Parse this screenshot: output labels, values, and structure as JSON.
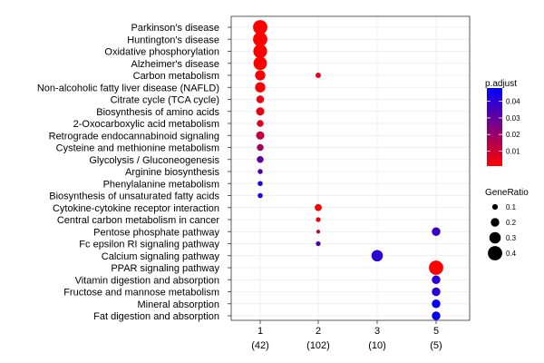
{
  "chart_data": {
    "type": "scatter",
    "title": "",
    "xlabel": "",
    "ylabel": "",
    "x_categories": [
      {
        "name": "1",
        "count": "(42)"
      },
      {
        "name": "2",
        "count": "(102)"
      },
      {
        "name": "3",
        "count": "(10)"
      },
      {
        "name": "5",
        "count": "(5)"
      }
    ],
    "y_categories": [
      "Parkinson's disease",
      "Huntington's disease",
      "Oxidative phosphorylation",
      "Alzheimer's disease",
      "Carbon metabolism",
      "Non-alcoholic fatty liver disease (NAFLD)",
      "Citrate cycle (TCA cycle)",
      "Biosynthesis of amino acids",
      "2-Oxocarboxylic acid metabolism",
      "Retrograde endocannabinoid signaling",
      "Cysteine and methionine metabolism",
      "Glycolysis / Gluconeogenesis",
      "Arginine biosynthesis",
      "Phenylalanine metabolism",
      "Biosynthesis of unsaturated fatty acids",
      "Cytokine-cytokine receptor interaction",
      "Central carbon metabolism in cancer",
      "Pentose phosphate pathway",
      "Fc epsilon RI signaling pathway",
      "Calcium signaling pathway",
      "PPAR signaling pathway",
      "Vitamin digestion and absorption",
      "Fructose and mannose metabolism",
      "Mineral absorption",
      "Fat digestion and absorption"
    ],
    "points": [
      {
        "x": "1",
        "y": "Parkinson's disease",
        "gene_ratio": 0.4,
        "p_adjust": 0.001
      },
      {
        "x": "1",
        "y": "Huntington's disease",
        "gene_ratio": 0.4,
        "p_adjust": 0.001
      },
      {
        "x": "1",
        "y": "Oxidative phosphorylation",
        "gene_ratio": 0.38,
        "p_adjust": 0.001
      },
      {
        "x": "1",
        "y": "Alzheimer's disease",
        "gene_ratio": 0.37,
        "p_adjust": 0.001
      },
      {
        "x": "1",
        "y": "Carbon metabolism",
        "gene_ratio": 0.26,
        "p_adjust": 0.002
      },
      {
        "x": "1",
        "y": "Non-alcoholic fatty liver disease (NAFLD)",
        "gene_ratio": 0.26,
        "p_adjust": 0.002
      },
      {
        "x": "1",
        "y": "Citrate cycle (TCA cycle)",
        "gene_ratio": 0.17,
        "p_adjust": 0.004
      },
      {
        "x": "1",
        "y": "Biosynthesis of amino acids",
        "gene_ratio": 0.19,
        "p_adjust": 0.005
      },
      {
        "x": "1",
        "y": "2-Oxocarboxylic acid metabolism",
        "gene_ratio": 0.14,
        "p_adjust": 0.008
      },
      {
        "x": "1",
        "y": "Retrograde endocannabinoid signaling",
        "gene_ratio": 0.19,
        "p_adjust": 0.012
      },
      {
        "x": "1",
        "y": "Cysteine and methionine metabolism",
        "gene_ratio": 0.14,
        "p_adjust": 0.018
      },
      {
        "x": "1",
        "y": "Glycolysis / Gluconeogenesis",
        "gene_ratio": 0.14,
        "p_adjust": 0.03
      },
      {
        "x": "1",
        "y": "Arginine biosynthesis",
        "gene_ratio": 0.08,
        "p_adjust": 0.033
      },
      {
        "x": "1",
        "y": "Phenylalanine metabolism",
        "gene_ratio": 0.08,
        "p_adjust": 0.042
      },
      {
        "x": "1",
        "y": "Biosynthesis of unsaturated fatty acids",
        "gene_ratio": 0.08,
        "p_adjust": 0.043
      },
      {
        "x": "2",
        "y": "Carbon metabolism",
        "gene_ratio": 0.09,
        "p_adjust": 0.005
      },
      {
        "x": "2",
        "y": "Cytokine-cytokine receptor interaction",
        "gene_ratio": 0.15,
        "p_adjust": 0.002
      },
      {
        "x": "2",
        "y": "Central carbon metabolism in cancer",
        "gene_ratio": 0.07,
        "p_adjust": 0.004
      },
      {
        "x": "2",
        "y": "Pentose phosphate pathway",
        "gene_ratio": 0.04,
        "p_adjust": 0.012
      },
      {
        "x": "2",
        "y": "Fc epsilon RI signaling pathway",
        "gene_ratio": 0.07,
        "p_adjust": 0.035
      },
      {
        "x": "3",
        "y": "Calcium signaling pathway",
        "gene_ratio": 0.3,
        "p_adjust": 0.04
      },
      {
        "x": "5",
        "y": "Pentose phosphate pathway",
        "gene_ratio": 0.2,
        "p_adjust": 0.038
      },
      {
        "x": "5",
        "y": "PPAR signaling pathway",
        "gene_ratio": 0.4,
        "p_adjust": 0.001
      },
      {
        "x": "5",
        "y": "Vitamin digestion and absorption",
        "gene_ratio": 0.2,
        "p_adjust": 0.04
      },
      {
        "x": "5",
        "y": "Fructose and mannose metabolism",
        "gene_ratio": 0.2,
        "p_adjust": 0.04
      },
      {
        "x": "5",
        "y": "Mineral absorption",
        "gene_ratio": 0.2,
        "p_adjust": 0.047
      },
      {
        "x": "5",
        "y": "Fat digestion and absorption",
        "gene_ratio": 0.2,
        "p_adjust": 0.048
      }
    ],
    "color_legend": {
      "title": "p.adjust",
      "ticks": [
        0.01,
        0.02,
        0.03,
        0.04
      ],
      "tick_labels": [
        "0.01",
        "0.02",
        "0.03",
        "0.04"
      ],
      "range": [
        0.001,
        0.048
      ],
      "low_color": "#ff0000",
      "high_color": "#0000ff"
    },
    "size_legend": {
      "title": "GeneRatio",
      "values": [
        0.1,
        0.2,
        0.3,
        0.4
      ],
      "labels": [
        "0.1",
        "0.2",
        "0.3",
        "0.4"
      ]
    },
    "grid": true,
    "legend_position": "right"
  }
}
